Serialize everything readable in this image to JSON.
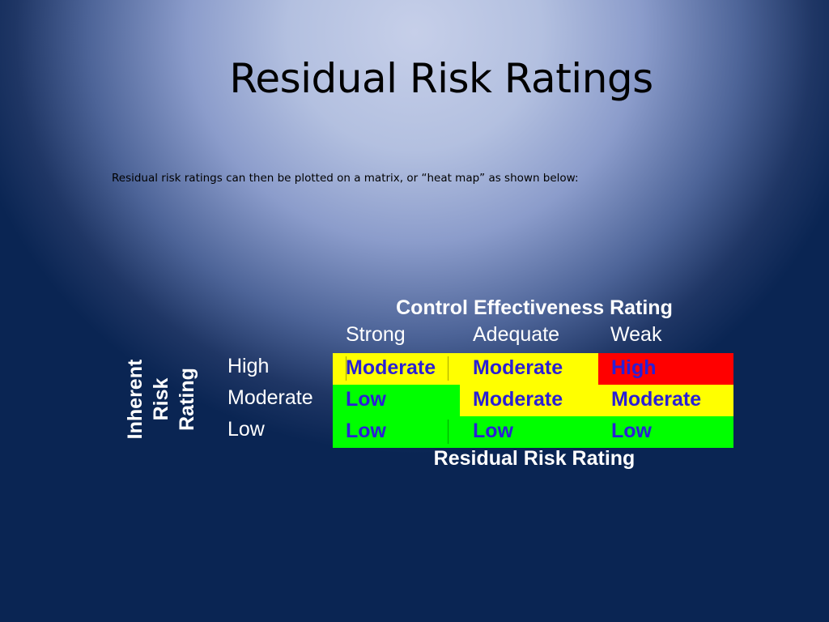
{
  "slide": {
    "title": "Residual Risk Ratings",
    "subtitle": "Residual risk ratings can then be plotted on a matrix, or “heat map” as shown below:"
  },
  "matrix": {
    "header": "Control Effectiveness Rating",
    "columns": [
      "Strong",
      "Adequate",
      "Weak"
    ],
    "axis_label_lines": [
      "Inherent",
      "Risk",
      "Rating"
    ],
    "rows": [
      {
        "label": "High",
        "cells": [
          "Moderate",
          "Moderate",
          "High"
        ]
      },
      {
        "label": "Moderate",
        "cells": [
          "Low",
          "Moderate",
          "Moderate"
        ]
      },
      {
        "label": "Low",
        "cells": [
          "Low",
          "Low",
          "Low"
        ]
      }
    ],
    "footer": "Residual Risk Rating"
  },
  "colors": {
    "low": "#00ff00",
    "moderate": "#ffff00",
    "high": "#ff0000",
    "cell_text": "#2a1fd6"
  }
}
